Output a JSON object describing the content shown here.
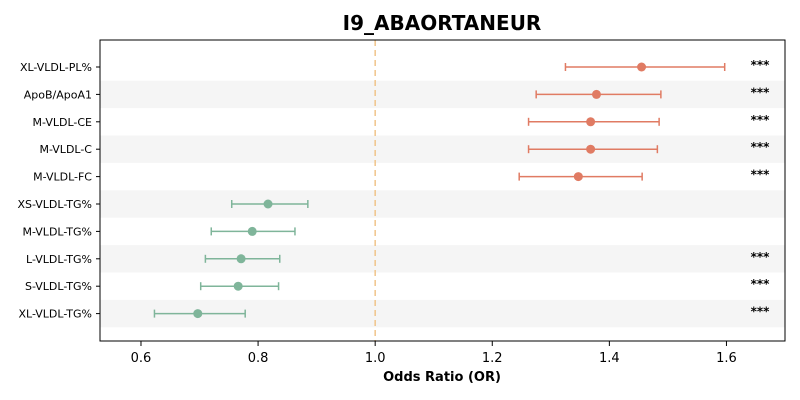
{
  "chart_data": {
    "type": "forest",
    "title": "I9_ABAORTANEUR",
    "xlabel": "Odds Ratio (OR)",
    "xlim": [
      0.53,
      1.7
    ],
    "xticks": [
      0.6,
      0.8,
      1.0,
      1.2,
      1.4,
      1.6
    ],
    "reference_line": 1.0,
    "colors": {
      "positive": "#e07b63",
      "negative": "#7fb59a",
      "reference": "#f0c48a",
      "band": "#f5f5f5"
    },
    "rows": [
      {
        "label": "XL-VLDL-PL%",
        "or": 1.455,
        "lo": 1.325,
        "hi": 1.597,
        "sig": "***"
      },
      {
        "label": "ApoB/ApoA1",
        "or": 1.378,
        "lo": 1.275,
        "hi": 1.488,
        "sig": "***"
      },
      {
        "label": "M-VLDL-CE",
        "or": 1.368,
        "lo": 1.262,
        "hi": 1.485,
        "sig": "***"
      },
      {
        "label": "M-VLDL-C",
        "or": 1.368,
        "lo": 1.262,
        "hi": 1.482,
        "sig": "***"
      },
      {
        "label": "M-VLDL-FC",
        "or": 1.347,
        "lo": 1.246,
        "hi": 1.456,
        "sig": "***"
      },
      {
        "label": "XS-VLDL-TG%",
        "or": 0.817,
        "lo": 0.755,
        "hi": 0.885,
        "sig": ""
      },
      {
        "label": "M-VLDL-TG%",
        "or": 0.79,
        "lo": 0.72,
        "hi": 0.863,
        "sig": ""
      },
      {
        "label": "L-VLDL-TG%",
        "or": 0.771,
        "lo": 0.71,
        "hi": 0.837,
        "sig": "***"
      },
      {
        "label": "S-VLDL-TG%",
        "or": 0.766,
        "lo": 0.702,
        "hi": 0.835,
        "sig": "***"
      },
      {
        "label": "XL-VLDL-TG%",
        "or": 0.697,
        "lo": 0.623,
        "hi": 0.778,
        "sig": "***"
      }
    ]
  }
}
